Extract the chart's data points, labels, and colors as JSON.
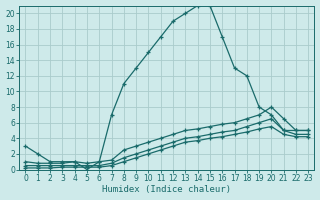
{
  "xlabel": "Humidex (Indice chaleur)",
  "bg_color": "#ceeaea",
  "grid_color": "#aacccc",
  "line_color": "#1a6b6b",
  "xlim": [
    -0.5,
    23.5
  ],
  "ylim": [
    0,
    21
  ],
  "xticks": [
    0,
    1,
    2,
    3,
    4,
    5,
    6,
    7,
    8,
    9,
    10,
    11,
    12,
    13,
    14,
    15,
    16,
    17,
    18,
    19,
    20,
    21,
    22,
    23
  ],
  "yticks": [
    0,
    2,
    4,
    6,
    8,
    10,
    12,
    14,
    16,
    18,
    20
  ],
  "series": [
    {
      "x": [
        0,
        1,
        2,
        3,
        4,
        5,
        6,
        7,
        8,
        9,
        10,
        11,
        12,
        13,
        14,
        15,
        16,
        17,
        18,
        19,
        20,
        21,
        22,
        23
      ],
      "y": [
        3,
        2,
        1,
        1,
        1,
        0,
        1,
        7,
        11,
        13,
        15,
        17,
        19,
        20,
        21,
        21,
        17,
        13,
        12,
        8,
        7,
        5,
        5,
        5
      ]
    },
    {
      "x": [
        0,
        1,
        2,
        3,
        4,
        5,
        6,
        7,
        8,
        9,
        10,
        11,
        12,
        13,
        14,
        15,
        16,
        17,
        18,
        19,
        20,
        21,
        22,
        23
      ],
      "y": [
        1,
        0.8,
        0.8,
        0.8,
        1.0,
        0.8,
        1.0,
        1.2,
        2.5,
        3.0,
        3.5,
        4.0,
        4.5,
        5.0,
        5.2,
        5.5,
        5.8,
        6.0,
        6.5,
        7.0,
        8.0,
        6.5,
        5.0,
        5.0
      ]
    },
    {
      "x": [
        0,
        1,
        2,
        3,
        4,
        5,
        6,
        7,
        8,
        9,
        10,
        11,
        12,
        13,
        14,
        15,
        16,
        17,
        18,
        19,
        20,
        21,
        22,
        23
      ],
      "y": [
        0.5,
        0.5,
        0.5,
        0.5,
        0.5,
        0.5,
        0.5,
        0.8,
        1.5,
        2.0,
        2.5,
        3.0,
        3.5,
        4.0,
        4.2,
        4.5,
        4.8,
        5.0,
        5.5,
        6.0,
        6.5,
        5.0,
        4.5,
        4.5
      ]
    },
    {
      "x": [
        0,
        1,
        2,
        3,
        4,
        5,
        6,
        7,
        8,
        9,
        10,
        11,
        12,
        13,
        14,
        15,
        16,
        17,
        18,
        19,
        20,
        21,
        22,
        23
      ],
      "y": [
        0.2,
        0.2,
        0.2,
        0.3,
        0.3,
        0.3,
        0.3,
        0.5,
        1.0,
        1.5,
        2.0,
        2.5,
        3.0,
        3.5,
        3.7,
        4.0,
        4.2,
        4.5,
        4.8,
        5.2,
        5.5,
        4.5,
        4.2,
        4.2
      ]
    }
  ]
}
